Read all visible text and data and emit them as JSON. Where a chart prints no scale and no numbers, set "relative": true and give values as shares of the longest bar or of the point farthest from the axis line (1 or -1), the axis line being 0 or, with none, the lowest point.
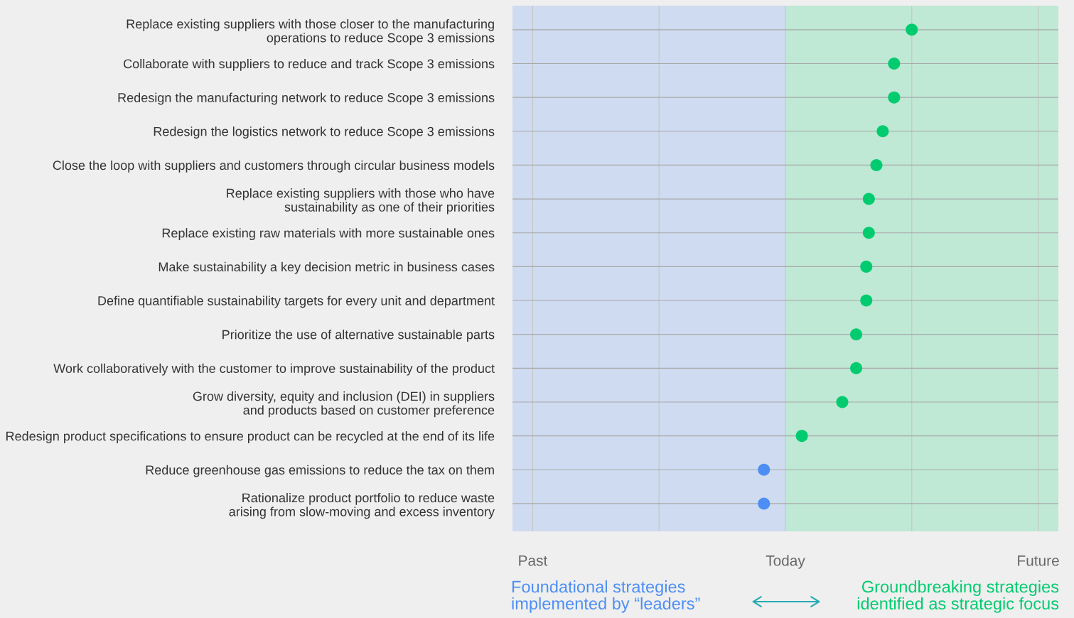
{
  "chart_data": {
    "type": "scatter",
    "orientation": "horizontal",
    "categories": [
      "Replace existing suppliers with those closer to the manufacturing\noperations to reduce Scope 3 emissions",
      "Collaborate with suppliers to reduce and track Scope 3 emissions",
      "Redesign the manufacturing network to reduce Scope 3 emissions",
      "Redesign the logistics network to reduce Scope 3 emissions",
      "Close the loop with suppliers and customers through circular business models",
      "Replace existing suppliers with those who have\nsustainability as one of their priorities",
      "Replace existing raw materials with more sustainable ones",
      "Make sustainability a key decision metric in business cases",
      "Define quantifiable sustainability targets for every unit and department",
      "Prioritize the use of alternative sustainable parts",
      "Work collaboratively with the customer to improve sustainability of the product",
      "Grow diversity, equity and inclusion (DEI) in suppliers\nand products based on customer preference",
      "Redesign product specifications to ensure product can be recycled at the end of its life",
      "Reduce greenhouse gas emissions to reduce the tax on them",
      "Rationalize product portfolio to reduce waste\narising from slow-moving and excess inventory"
    ],
    "values": [
      1,
      0.86,
      0.86,
      0.77,
      0.72,
      0.66,
      0.66,
      0.64,
      0.64,
      0.56,
      0.56,
      0.45,
      0.13,
      -0.17,
      -0.17
    ],
    "relative": true,
    "annotations": [
      "Past",
      "Today",
      "Future"
    ],
    "colors": [
      "#00cc6f",
      "#00cc6f",
      "#00cc6f",
      "#00cc6f",
      "#00cc6f",
      "#00cc6f",
      "#00cc6f",
      "#00cc6f",
      "#00cc6f",
      "#00cc6f",
      "#00cc6f",
      "#00cc6f",
      "#00cc6f",
      "#4d8ef5",
      "#4d8ef5"
    ],
    "marker": "circle",
    "bands": [
      {
        "axis": "x",
        "from": -2.16,
        "to": 0,
        "label": "Foundational strategies\nimplemented by “leaders”",
        "color": "#4d8ef5"
      },
      {
        "axis": "x",
        "from": 0,
        "to": 2.16,
        "label": "Groundbreaking strategies\nidentified as strategic focus",
        "color": "#00cc6f"
      }
    ],
    "grid": true
  }
}
